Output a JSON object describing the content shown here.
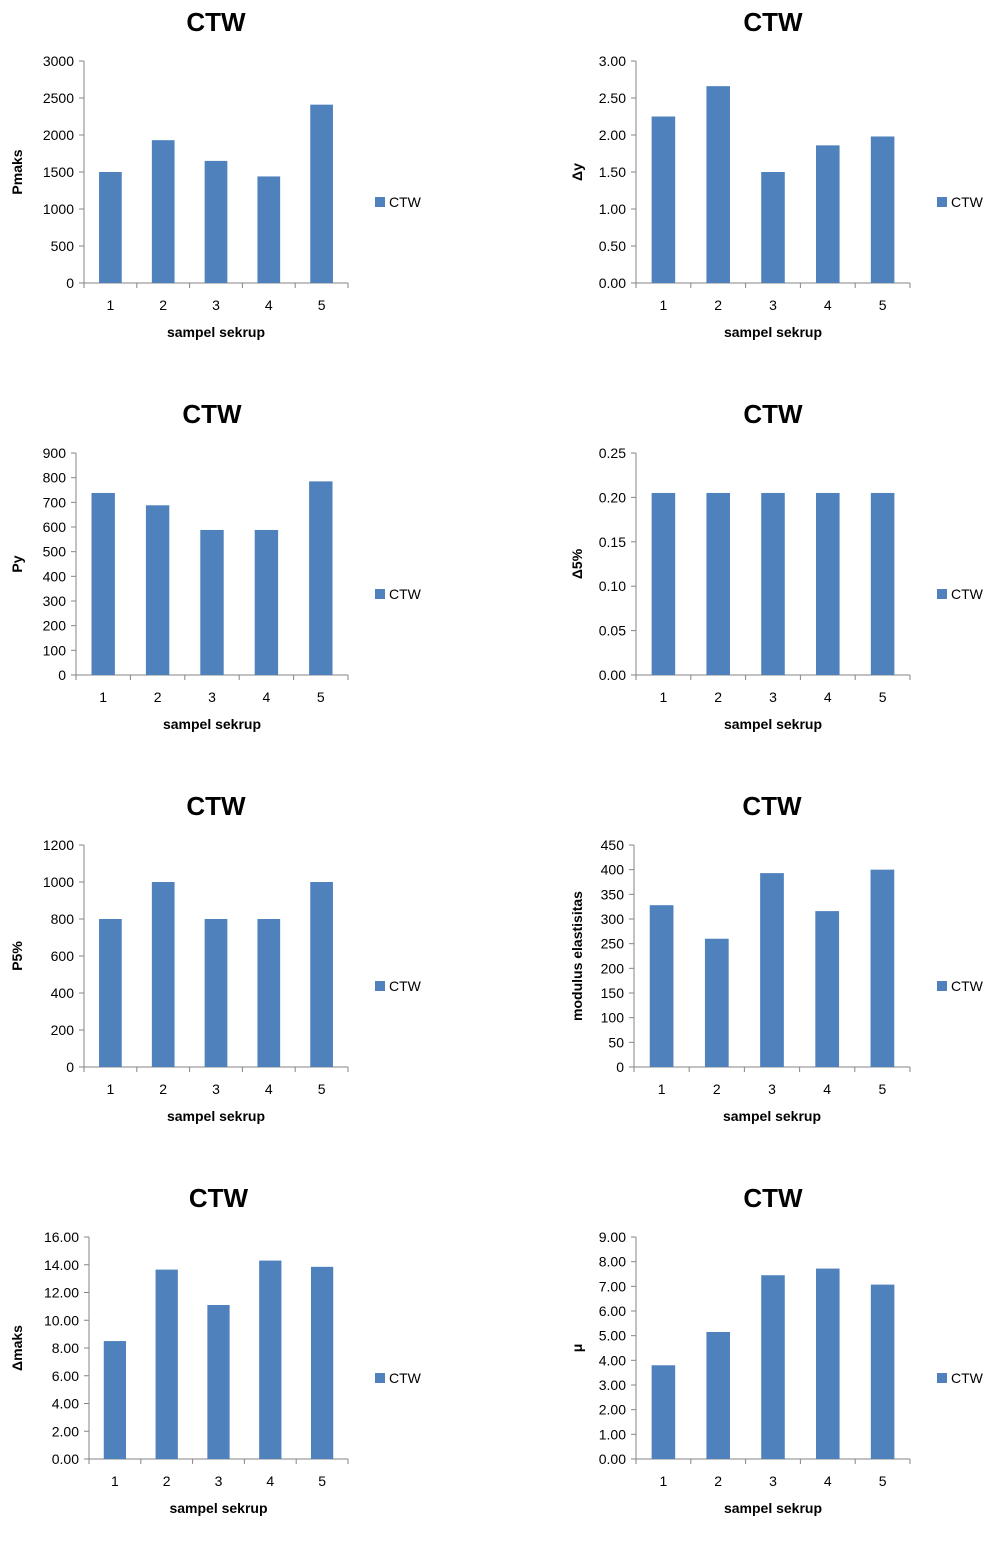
{
  "chart_data": [
    {
      "type": "bar",
      "title": "CTW",
      "xlabel": "sampel sekrup",
      "ylabel": "Pmaks",
      "categories": [
        "1",
        "2",
        "3",
        "4",
        "5"
      ],
      "series": [
        {
          "name": "CTW",
          "values": [
            1500,
            1930,
            1650,
            1440,
            2410
          ]
        }
      ],
      "ylim": [
        0,
        3000
      ],
      "yticks": [
        "0",
        "500",
        "1000",
        "1500",
        "2000",
        "2500",
        "3000"
      ],
      "color": "#4f81bd",
      "legend": "right"
    },
    {
      "type": "bar",
      "title": "CTW",
      "xlabel": "sampel sekrup",
      "ylabel": "Δy",
      "categories": [
        "1",
        "2",
        "3",
        "4",
        "5"
      ],
      "series": [
        {
          "name": "CTW",
          "values": [
            2.25,
            2.66,
            1.5,
            1.86,
            1.98
          ]
        }
      ],
      "ylim": [
        0,
        3
      ],
      "yticks": [
        "0.00",
        "0.50",
        "1.00",
        "1.50",
        "2.00",
        "2.50",
        "3.00"
      ],
      "color": "#4f81bd",
      "legend": "right"
    },
    {
      "type": "bar",
      "title": "CTW",
      "xlabel": "sampel sekrup",
      "ylabel": "Py",
      "categories": [
        "1",
        "2",
        "3",
        "4",
        "5"
      ],
      "series": [
        {
          "name": "CTW",
          "values": [
            738,
            688,
            588,
            588,
            785
          ]
        }
      ],
      "ylim": [
        0,
        900
      ],
      "yticks": [
        "0",
        "100",
        "200",
        "300",
        "400",
        "500",
        "600",
        "700",
        "800",
        "900"
      ],
      "color": "#4f81bd",
      "legend": "right"
    },
    {
      "type": "bar",
      "title": "CTW",
      "xlabel": "sampel sekrup",
      "ylabel": "Δ5%",
      "categories": [
        "1",
        "2",
        "3",
        "4",
        "5"
      ],
      "series": [
        {
          "name": "CTW",
          "values": [
            0.205,
            0.205,
            0.205,
            0.205,
            0.205
          ]
        }
      ],
      "ylim": [
        0,
        0.25
      ],
      "yticks": [
        "0.00",
        "0.05",
        "0.10",
        "0.15",
        "0.20",
        "0.25"
      ],
      "color": "#4f81bd",
      "legend": "right"
    },
    {
      "type": "bar",
      "title": "CTW",
      "xlabel": "sampel sekrup",
      "ylabel": "P5%",
      "categories": [
        "1",
        "2",
        "3",
        "4",
        "5"
      ],
      "series": [
        {
          "name": "CTW",
          "values": [
            800,
            1000,
            800,
            800,
            1000
          ]
        }
      ],
      "ylim": [
        0,
        1200
      ],
      "yticks": [
        "0",
        "200",
        "400",
        "600",
        "800",
        "1000",
        "1200"
      ],
      "color": "#4f81bd",
      "legend": "right"
    },
    {
      "type": "bar",
      "title": "CTW",
      "xlabel": "sampel sekrup",
      "ylabel": "modulus elastisitas",
      "categories": [
        "1",
        "2",
        "3",
        "4",
        "5"
      ],
      "series": [
        {
          "name": "CTW",
          "values": [
            328,
            260,
            393,
            316,
            400
          ]
        }
      ],
      "ylim": [
        0,
        450
      ],
      "yticks": [
        "0",
        "50",
        "100",
        "150",
        "200",
        "250",
        "300",
        "350",
        "400",
        "450"
      ],
      "color": "#4f81bd",
      "legend": "right"
    },
    {
      "type": "bar",
      "title": "CTW",
      "xlabel": "sampel sekrup",
      "ylabel": "Δmaks",
      "categories": [
        "1",
        "2",
        "3",
        "4",
        "5"
      ],
      "series": [
        {
          "name": "CTW",
          "values": [
            8.5,
            13.65,
            11.1,
            14.3,
            13.85
          ]
        }
      ],
      "ylim": [
        0,
        16
      ],
      "yticks": [
        "0.00",
        "2.00",
        "4.00",
        "6.00",
        "8.00",
        "10.00",
        "12.00",
        "14.00",
        "16.00"
      ],
      "color": "#4f81bd",
      "legend": "right"
    },
    {
      "type": "bar",
      "title": "CTW",
      "xlabel": "sampel sekrup",
      "ylabel": "μ",
      "categories": [
        "1",
        "2",
        "3",
        "4",
        "5"
      ],
      "series": [
        {
          "name": "CTW",
          "values": [
            3.8,
            5.15,
            7.45,
            7.72,
            7.07
          ]
        }
      ],
      "ylim": [
        0,
        9
      ],
      "yticks": [
        "0.00",
        "1.00",
        "2.00",
        "3.00",
        "4.00",
        "5.00",
        "6.00",
        "7.00",
        "8.00",
        "9.00"
      ],
      "color": "#4f81bd",
      "legend": "right"
    }
  ]
}
